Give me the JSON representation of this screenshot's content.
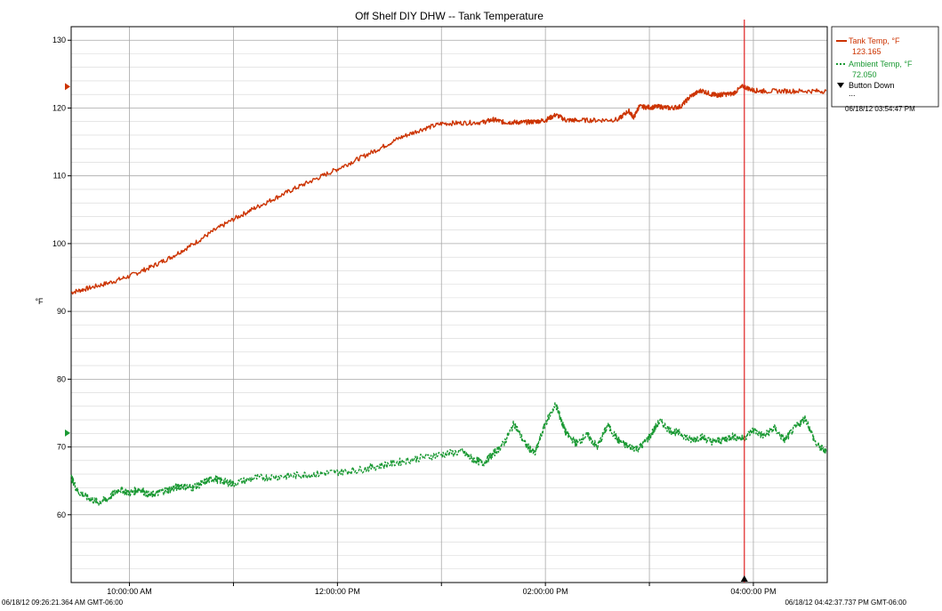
{
  "chart_data": {
    "type": "line",
    "title": "Off Shelf DIY DHW -- Tank Temperature",
    "ylabel": "°F",
    "xlabel": "",
    "ylim": [
      50,
      132
    ],
    "y_ticks": [
      60,
      70,
      80,
      90,
      100,
      110,
      120,
      130
    ],
    "x_range_hours": [
      9.4393,
      16.7105
    ],
    "x_ticks": [
      {
        "label": "10:00:00 AM",
        "hour": 10
      },
      {
        "label": "12:00:00 PM",
        "hour": 12
      },
      {
        "label": "02:00:00 PM",
        "hour": 14
      },
      {
        "label": "04:00:00 PM",
        "hour": 16
      }
    ],
    "start_label": "06/18/12 09:26:21.364 AM GMT-06:00",
    "end_label": "06/18/12 04:42:37.737 PM GMT-06:00",
    "cursor": {
      "hour": 15.9131,
      "label": "06/18/12 03:54:47 PM"
    },
    "grid": true,
    "legend_position": "right",
    "series": [
      {
        "name": "Tank Temp, °F",
        "readout": "123.165",
        "color": "#cc3300",
        "style": "solid",
        "x": [
          9.44,
          9.6,
          9.8,
          10.0,
          10.2,
          10.4,
          10.6,
          10.8,
          11.0,
          11.2,
          11.4,
          11.6,
          11.8,
          12.0,
          12.2,
          12.4,
          12.6,
          12.8,
          13.0,
          13.2,
          13.4,
          13.5,
          13.6,
          13.7,
          13.8,
          13.9,
          14.0,
          14.1,
          14.2,
          14.3,
          14.5,
          14.7,
          14.8,
          14.85,
          14.9,
          15.0,
          15.1,
          15.2,
          15.3,
          15.4,
          15.5,
          15.6,
          15.65,
          15.7,
          15.8,
          15.9,
          16.0,
          16.1,
          16.3,
          16.5,
          16.7
        ],
        "y": [
          92.8,
          93.4,
          94.2,
          95.2,
          96.5,
          98.0,
          99.8,
          101.8,
          103.6,
          105.2,
          106.7,
          108.2,
          109.6,
          111.0,
          112.5,
          114.0,
          115.6,
          116.8,
          117.7,
          117.8,
          117.9,
          118.3,
          117.9,
          117.9,
          117.9,
          118.0,
          118.2,
          119.0,
          118.2,
          118.2,
          118.2,
          118.3,
          119.6,
          118.6,
          120.2,
          120.1,
          120.2,
          120.0,
          120.2,
          121.8,
          122.6,
          122.0,
          121.9,
          122.0,
          122.1,
          123.2,
          122.6,
          122.5,
          122.5,
          122.5,
          122.5
        ]
      },
      {
        "name": "Ambient Temp, °F",
        "readout": "72.050",
        "color": "#1a9933",
        "style": "dotted",
        "x": [
          9.44,
          9.5,
          9.6,
          9.7,
          9.8,
          9.9,
          10.0,
          10.1,
          10.2,
          10.3,
          10.4,
          10.5,
          10.6,
          10.7,
          10.8,
          10.9,
          11.0,
          11.2,
          11.4,
          11.6,
          11.8,
          12.0,
          12.2,
          12.4,
          12.6,
          12.8,
          13.0,
          13.2,
          13.3,
          13.4,
          13.5,
          13.6,
          13.7,
          13.8,
          13.9,
          14.0,
          14.1,
          14.15,
          14.2,
          14.3,
          14.4,
          14.5,
          14.6,
          14.7,
          14.8,
          14.9,
          15.0,
          15.1,
          15.2,
          15.3,
          15.4,
          15.5,
          15.6,
          15.7,
          15.8,
          15.9,
          16.0,
          16.1,
          16.2,
          16.3,
          16.4,
          16.5,
          16.6,
          16.7
        ],
        "y": [
          65.5,
          63.5,
          62.5,
          61.8,
          62.4,
          63.8,
          63.2,
          63.8,
          62.8,
          63.4,
          63.8,
          64.3,
          64.0,
          64.6,
          65.4,
          64.9,
          64.6,
          65.4,
          65.6,
          65.8,
          66.0,
          66.3,
          66.6,
          67.2,
          67.8,
          68.4,
          68.9,
          69.3,
          68.2,
          67.6,
          69.0,
          70.5,
          73.5,
          70.5,
          69.0,
          73.5,
          76.3,
          74.0,
          72.0,
          70.5,
          71.8,
          70.0,
          73.2,
          71.0,
          70.0,
          69.8,
          71.5,
          73.8,
          72.4,
          72.0,
          71.0,
          71.5,
          70.8,
          71.0,
          71.6,
          71.2,
          72.5,
          71.6,
          72.8,
          71.0,
          72.8,
          74.3,
          70.5,
          69.2
        ]
      }
    ],
    "events": [
      {
        "name": "Button Down",
        "value": "...",
        "marker_hour": 15.9131
      }
    ]
  }
}
